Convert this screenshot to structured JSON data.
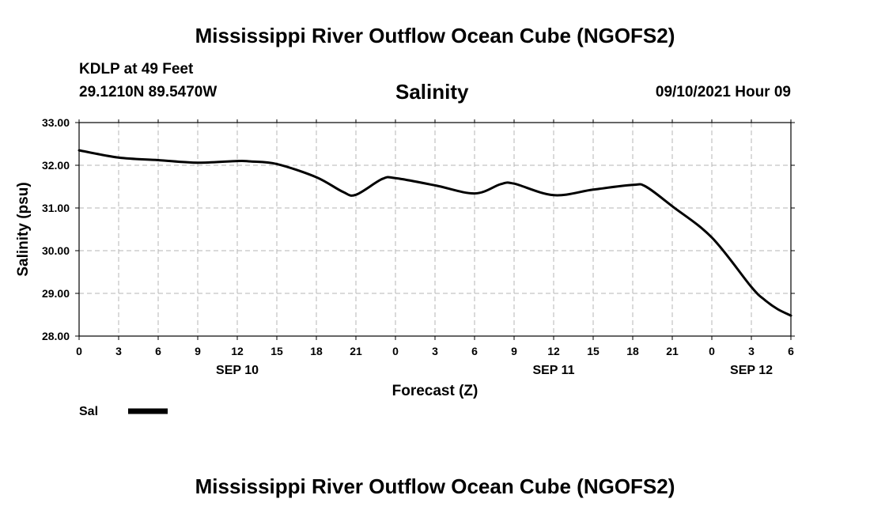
{
  "page": {
    "title_top": "Mississippi River Outflow Ocean Cube (NGOFS2)",
    "title_bottom": "Mississippi River Outflow Ocean Cube (NGOFS2)",
    "station": "KDLP at 49 Feet",
    "coords": "29.1210N  89.5470W",
    "chart_title": "Salinity",
    "datetime": "09/10/2021 Hour 09"
  },
  "chart_data": {
    "type": "line",
    "title": "Salinity",
    "xlabel": "Forecast (Z)",
    "ylabel": "Salinity (psu)",
    "ylim": [
      28.0,
      33.0
    ],
    "xlim": [
      0,
      54
    ],
    "grid": true,
    "y_ticks": [
      "28.00",
      "29.00",
      "30.00",
      "31.00",
      "32.00",
      "33.00"
    ],
    "x_tick_labels": [
      "0",
      "3",
      "6",
      "9",
      "12",
      "15",
      "18",
      "21",
      "0",
      "3",
      "6",
      "9",
      "12",
      "15",
      "18",
      "21",
      "0",
      "3",
      "6"
    ],
    "date_labels": [
      {
        "label": "SEP 10",
        "x": 12
      },
      {
        "label": "SEP 11",
        "x": 36
      },
      {
        "label": "SEP 12",
        "x": 51
      }
    ],
    "legend": {
      "label": "Sal",
      "placement": "bottom-left"
    },
    "series": [
      {
        "name": "Sal",
        "x": [
          0,
          3,
          6,
          9,
          12,
          13,
          15,
          18,
          20,
          21,
          23,
          24,
          27,
          30,
          32,
          33,
          36,
          39,
          42,
          43,
          45,
          48,
          51,
          52,
          53,
          54
        ],
        "values": [
          32.35,
          32.18,
          32.12,
          32.06,
          32.1,
          32.09,
          32.03,
          31.72,
          31.38,
          31.31,
          31.68,
          31.7,
          31.53,
          31.34,
          31.56,
          31.57,
          31.3,
          31.43,
          31.54,
          31.5,
          31.04,
          30.31,
          29.15,
          28.85,
          28.63,
          28.48
        ]
      }
    ]
  }
}
